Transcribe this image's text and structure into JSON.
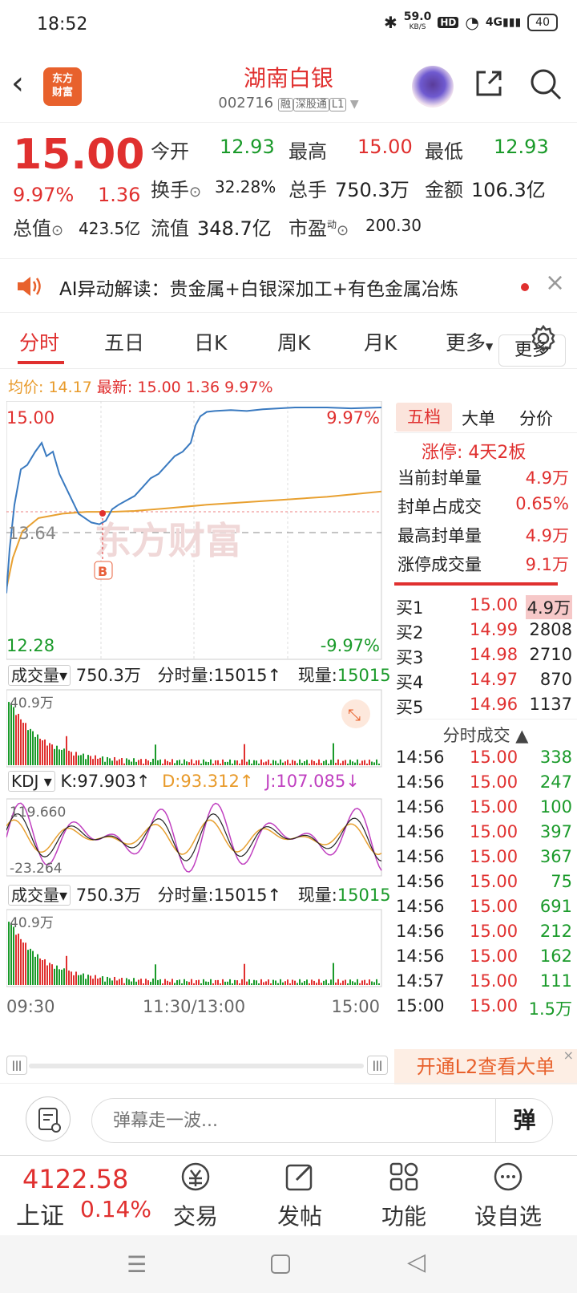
{
  "status": {
    "time": "18:52",
    "net_speed": "59.0",
    "net_unit": "KB/S",
    "hd": "HD",
    "signal": "4G",
    "battery": "40"
  },
  "header": {
    "logo_line1": "东方",
    "logo_line2": "财富",
    "title": "湖南白银",
    "code": "002716",
    "tag1": "融",
    "tag2": "深股通",
    "tag3": "L1"
  },
  "quote": {
    "price": "15.00",
    "pct": "9.97%",
    "chg": "1.36",
    "open_label": "今开",
    "open": "12.93",
    "high_label": "最高",
    "high": "15.00",
    "low_label": "最低",
    "low": "12.93",
    "turnover_label": "换手",
    "turnover": "32.28%",
    "vol_label": "总手",
    "vol": "750.3万",
    "amount_label": "金额",
    "amount": "106.3亿",
    "mcap_label": "总值",
    "mcap": "423.5亿",
    "float_label": "流值",
    "float": "348.7亿",
    "pe_label": "市盈",
    "pe_sup": "动",
    "pe": "200.30",
    "more": "更多"
  },
  "ai": {
    "text": "AI异动解读：贵金属+白银深加工+有色金属冶炼"
  },
  "tabs": [
    "分时",
    "五日",
    "日K",
    "周K",
    "月K",
    "更多"
  ],
  "avg": {
    "avg_label": "均价:",
    "avg": "14.17",
    "last_label": "最新:",
    "last": "15.00",
    "chg": "1.36",
    "pct": "9.97%"
  },
  "chart": {
    "top_price": "15.00",
    "top_pct": "9.97%",
    "mid_price": "13.64",
    "bottom_price": "12.28",
    "bottom_pct": "-9.97%",
    "marker": "B",
    "watermark": "东方财富",
    "vol_label": "成交量",
    "vol_total": "750.3万",
    "vol_min_label": "分时量:15015",
    "vol_now_label": "现量:",
    "vol_now": "15015",
    "vol_max": "40.9万",
    "kdj_label": "KDJ",
    "k": "K:97.903",
    "d": "D:93.312",
    "j": "J:107.085",
    "kdj_top": "119.660",
    "kdj_bottom": "-23.264",
    "vol2_label": "成交量",
    "vol2_total": "750.3万",
    "vol2_min_label": "分时量:15015",
    "vol2_now_label": "现量:",
    "vol2_now": "15015",
    "vol2_max": "40.9万",
    "t_start": "09:30",
    "t_mid": "11:30/13:00",
    "t_end": "15:00"
  },
  "right": {
    "tabs": [
      "五档",
      "大单",
      "分价"
    ],
    "limit_label": "涨停:",
    "limit_val": "4天2板",
    "rows": [
      {
        "label": "当前封单量",
        "value": "4.9万"
      },
      {
        "label": "封单占成交",
        "value": "0.65%"
      },
      {
        "label": "最高封单量",
        "value": "4.9万"
      },
      {
        "label": "涨停成交量",
        "value": "9.1万"
      }
    ],
    "book": [
      {
        "label": "买1",
        "price": "15.00",
        "qty": "4.9万"
      },
      {
        "label": "买2",
        "price": "14.99",
        "qty": "2808"
      },
      {
        "label": "买3",
        "price": "14.98",
        "qty": "2710"
      },
      {
        "label": "买4",
        "price": "14.97",
        "qty": "870"
      },
      {
        "label": "买5",
        "price": "14.96",
        "qty": "1137"
      }
    ],
    "ticks_title": "分时成交",
    "ticks": [
      {
        "t": "14:56",
        "p": "15.00",
        "q": "338"
      },
      {
        "t": "14:56",
        "p": "15.00",
        "q": "247"
      },
      {
        "t": "14:56",
        "p": "15.00",
        "q": "100"
      },
      {
        "t": "14:56",
        "p": "15.00",
        "q": "397"
      },
      {
        "t": "14:56",
        "p": "15.00",
        "q": "367"
      },
      {
        "t": "14:56",
        "p": "15.00",
        "q": "75"
      },
      {
        "t": "14:56",
        "p": "15.00",
        "q": "691"
      },
      {
        "t": "14:56",
        "p": "15.00",
        "q": "212"
      },
      {
        "t": "14:56",
        "p": "15.00",
        "q": "162"
      },
      {
        "t": "14:57",
        "p": "15.00",
        "q": "111"
      },
      {
        "t": "15:00",
        "p": "15.00",
        "q": "1.5万"
      }
    ],
    "l2": "开通L2查看大单"
  },
  "comment": {
    "placeholder": "弹幕走一波...",
    "danmu": "弹"
  },
  "bottom": {
    "idx_val": "4122.58",
    "idx_name": "上证",
    "idx_pct": "0.14%",
    "items": [
      "交易",
      "发帖",
      "功能",
      "设自选"
    ]
  },
  "colors": {
    "red": "#e0302f",
    "green": "#1a9a2a",
    "avg": "#e8a030",
    "price": "#3a7ac0"
  }
}
